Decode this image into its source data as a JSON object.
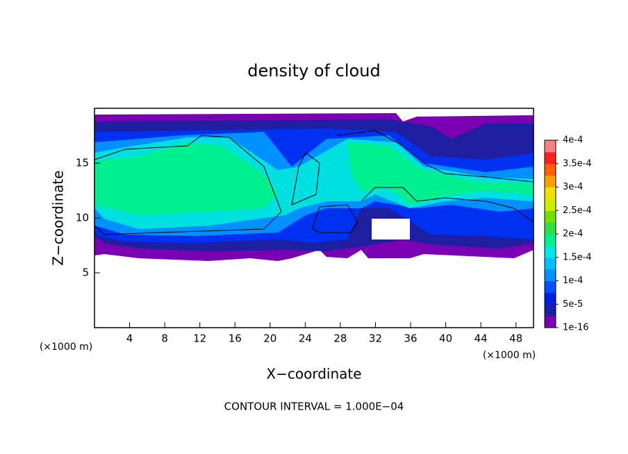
{
  "chart_data": {
    "type": "contour",
    "title": "density of cloud",
    "x_label": "X−coordinate",
    "y_label": "Z−coordinate",
    "x_unit": "(×1000 m)",
    "y_unit": "(×1000 m)",
    "annotation": "CONTOUR INTERVAL = 1.000E−04",
    "xlim": [
      0,
      50
    ],
    "ylim": [
      0,
      20
    ],
    "xticks": [
      4,
      8,
      12,
      16,
      20,
      24,
      28,
      32,
      36,
      40,
      44,
      48
    ],
    "yticks": [
      5,
      10,
      15
    ],
    "colorbar": {
      "lim": [
        0,
        0.0004
      ],
      "ticks": [
        {
          "value": 1e-16,
          "label": "1e-16"
        },
        {
          "value": 5e-05,
          "label": "5e-5"
        },
        {
          "value": 0.0001,
          "label": "1e-4"
        },
        {
          "value": 0.00015,
          "label": "1.5e-4"
        },
        {
          "value": 0.0002,
          "label": "2e-4"
        },
        {
          "value": 0.00025,
          "label": "2.5e-4"
        },
        {
          "value": 0.0003,
          "label": "3e-4"
        },
        {
          "value": 0.00035,
          "label": "3.5e-4"
        },
        {
          "value": 0.0004,
          "label": "4e-4"
        }
      ],
      "colors": [
        "#7a00b4",
        "#1e1ea0",
        "#0020e0",
        "#0050ff",
        "#0090ff",
        "#00c0ff",
        "#00e8e8",
        "#00f090",
        "#30e040",
        "#70e000",
        "#c8f000",
        "#f0e000",
        "#ffa000",
        "#ff6000",
        "#ff2020",
        "#ff8080"
      ]
    }
  }
}
